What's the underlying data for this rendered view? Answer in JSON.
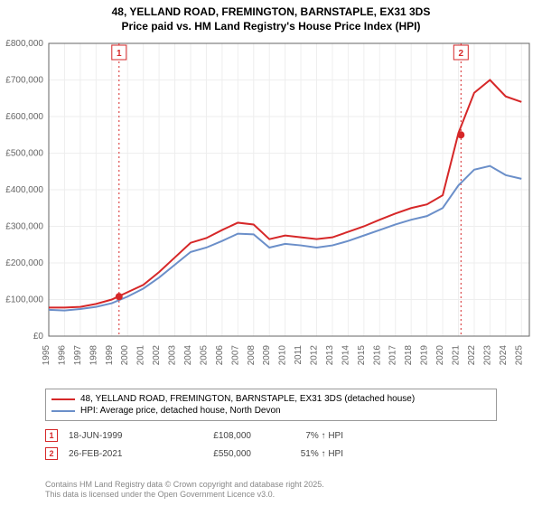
{
  "title_line1": "48, YELLAND ROAD, FREMINGTON, BARNSTAPLE, EX31 3DS",
  "title_line2": "Price paid vs. HM Land Registry's House Price Index (HPI)",
  "chart": {
    "type": "line",
    "background_color": "#ffffff",
    "grid_color": "#eeeeee",
    "axis_color": "#666666",
    "x_years": [
      1995,
      1996,
      1997,
      1998,
      1999,
      2000,
      2001,
      2002,
      2003,
      2004,
      2005,
      2006,
      2007,
      2008,
      2009,
      2010,
      2011,
      2012,
      2013,
      2014,
      2015,
      2016,
      2017,
      2018,
      2019,
      2020,
      2021,
      2022,
      2023,
      2024,
      2025
    ],
    "xlim": [
      1995,
      2025.5
    ],
    "ylim": [
      0,
      800000
    ],
    "ytick_step": 100000,
    "yticks": [
      "£0",
      "£100,000",
      "£200,000",
      "£300,000",
      "£400,000",
      "£500,000",
      "£600,000",
      "£700,000",
      "£800,000"
    ],
    "series": [
      {
        "name": "property",
        "color": "#d62728",
        "width": 2,
        "y": [
          78000,
          78000,
          80000,
          88000,
          100000,
          120000,
          140000,
          175000,
          215000,
          255000,
          268000,
          290000,
          310000,
          305000,
          265000,
          275000,
          270000,
          265000,
          270000,
          285000,
          300000,
          318000,
          335000,
          350000,
          360000,
          385000,
          555000,
          665000,
          700000,
          655000,
          640000
        ]
      },
      {
        "name": "hpi",
        "color": "#6b8fc9",
        "width": 2,
        "y": [
          72000,
          70000,
          74000,
          80000,
          90000,
          108000,
          130000,
          160000,
          195000,
          230000,
          242000,
          260000,
          280000,
          278000,
          242000,
          252000,
          248000,
          242000,
          248000,
          260000,
          275000,
          290000,
          305000,
          318000,
          328000,
          350000,
          412000,
          455000,
          465000,
          440000,
          430000
        ]
      }
    ],
    "sale_markers": [
      {
        "num": "1",
        "x": 1999.46,
        "y": 108000,
        "color": "#d62728"
      },
      {
        "num": "2",
        "x": 2021.16,
        "y": 550000,
        "color": "#d62728"
      }
    ]
  },
  "legend": {
    "items": [
      {
        "color": "#d62728",
        "label": "48, YELLAND ROAD, FREMINGTON, BARNSTAPLE, EX31 3DS (detached house)"
      },
      {
        "color": "#6b8fc9",
        "label": "HPI: Average price, detached house, North Devon"
      }
    ]
  },
  "sales": [
    {
      "num": "1",
      "date": "18-JUN-1999",
      "price": "£108,000",
      "delta": "7% ↑ HPI",
      "border": "#d62728"
    },
    {
      "num": "2",
      "date": "26-FEB-2021",
      "price": "£550,000",
      "delta": "51% ↑ HPI",
      "border": "#d62728"
    }
  ],
  "footer_line1": "Contains HM Land Registry data © Crown copyright and database right 2025.",
  "footer_line2": "This data is licensed under the Open Government Licence v3.0."
}
